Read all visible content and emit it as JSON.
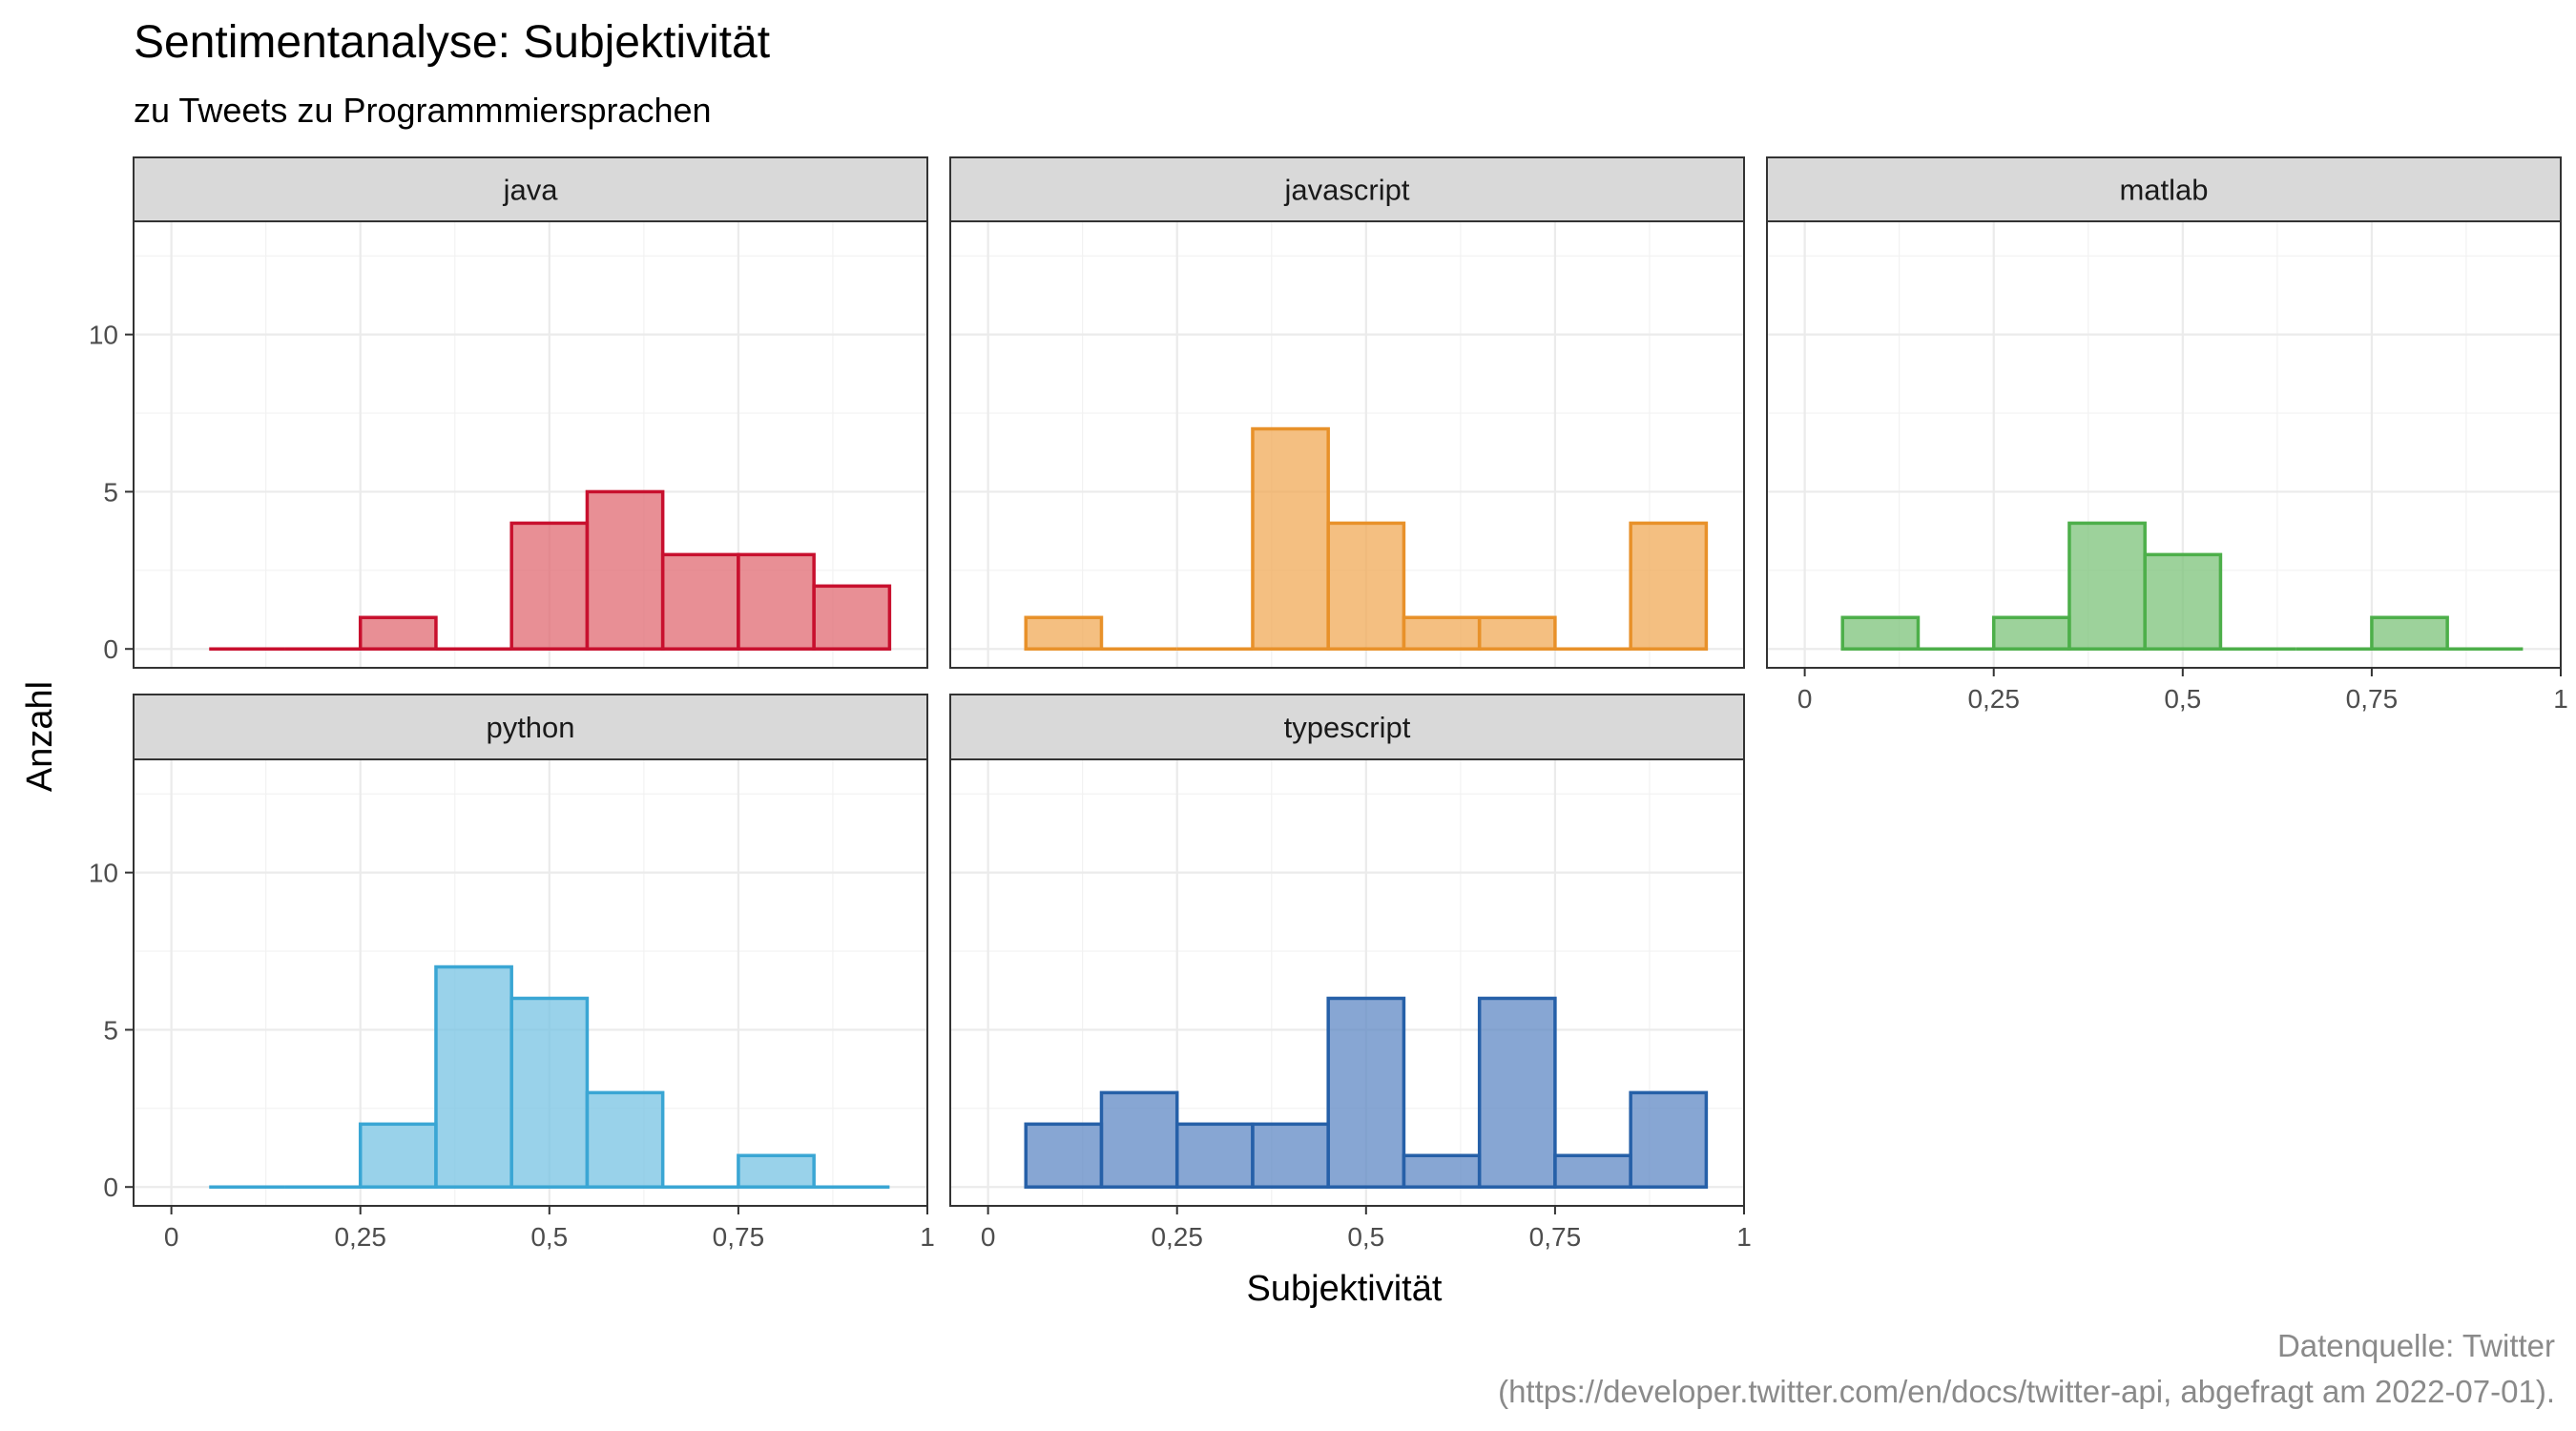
{
  "title": "Sentimentanalyse: Subjektivität",
  "subtitle": "zu Tweets zu Programmmiersprachen",
  "caption": [
    "Datenquelle: Twitter",
    "(https://developer.twitter.com/en/docs/twitter-api, abgefragt am 2022-07-01)."
  ],
  "chart_data": {
    "type": "histogram",
    "xlabel": "Subjektivität",
    "ylabel": "Anzahl",
    "xlim": [
      -0.05,
      1.0
    ],
    "ylim": [
      -0.6,
      13.6
    ],
    "x_ticks": [
      0,
      0.25,
      0.5,
      0.75,
      1
    ],
    "x_tick_labels": [
      "0",
      "0,25",
      "0,5",
      "0,75",
      "1"
    ],
    "y_ticks": [
      0,
      5,
      10
    ],
    "y_tick_labels": [
      "0",
      "5",
      "10"
    ],
    "bin_centers": [
      0.1,
      0.2,
      0.3,
      0.4,
      0.5,
      0.6,
      0.7,
      0.8,
      0.9
    ],
    "bin_width": 0.1,
    "grid": true,
    "facets": [
      {
        "name": "java",
        "color": "#c8102e",
        "fill": "#e06a72",
        "values": [
          0,
          0,
          1,
          0,
          4,
          5,
          3,
          3,
          2
        ]
      },
      {
        "name": "javascript",
        "color": "#e8912a",
        "fill": "#f0a957",
        "values": [
          1,
          0,
          0,
          7,
          4,
          1,
          1,
          0,
          4
        ]
      },
      {
        "name": "matlab",
        "color": "#4daf4a",
        "fill": "#7cc37a",
        "values": [
          1,
          0,
          1,
          4,
          3,
          0,
          0,
          1,
          0
        ]
      },
      {
        "name": "python",
        "color": "#3aa6d4",
        "fill": "#77c3e3",
        "values": [
          0,
          0,
          2,
          7,
          6,
          3,
          0,
          1,
          0
        ]
      },
      {
        "name": "typescript",
        "color": "#2660a8",
        "fill": "#5f88c4",
        "values": [
          2,
          3,
          2,
          2,
          6,
          1,
          6,
          1,
          3
        ]
      }
    ]
  }
}
